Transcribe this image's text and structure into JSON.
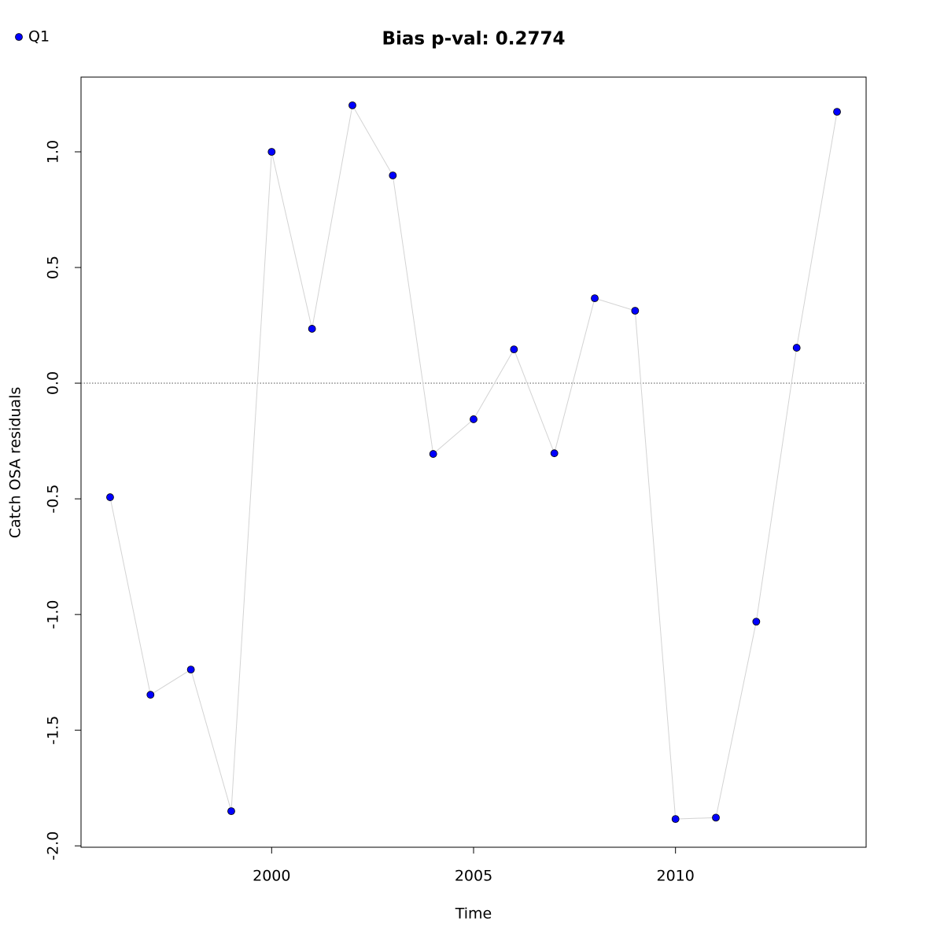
{
  "chart_data": {
    "type": "line",
    "title": "Bias p-val: 0.2774",
    "title_color": "#228b22",
    "x_label": "Time",
    "y_label": "Catch OSA residuals",
    "x": [
      1996,
      1997,
      1998,
      1999,
      2000,
      2001,
      2002,
      2003,
      2004,
      2005,
      2006,
      2007,
      2008,
      2009,
      2010,
      2011,
      2012,
      2013,
      2014
    ],
    "series": [
      {
        "name": "Q1",
        "color": "#0000ff",
        "line_color": "#d3d3d3",
        "values": [
          -0.493,
          -1.347,
          -1.238,
          -1.85,
          1.0,
          0.235,
          1.201,
          0.898,
          -0.306,
          -0.156,
          0.146,
          -0.303,
          0.367,
          0.313,
          -1.884,
          -1.878,
          -1.031,
          0.153,
          1.173
        ]
      }
    ],
    "xlim": [
      1995.28,
      2014.72
    ],
    "xticks": [
      2000,
      2005,
      2010
    ],
    "ylim": [
      -2.006,
      1.323
    ],
    "yticks": [
      {
        "value": -2,
        "label": "-2.0"
      },
      {
        "value": -1.5,
        "label": "-1.5"
      },
      {
        "value": -1,
        "label": "-1.0"
      },
      {
        "value": -0.5,
        "label": "-0.5"
      },
      {
        "value": 0,
        "label": "0.0"
      },
      {
        "value": 0.5,
        "label": "0.5"
      },
      {
        "value": 1,
        "label": "1.0"
      }
    ],
    "reference_line": 0,
    "legend": "top-left"
  }
}
